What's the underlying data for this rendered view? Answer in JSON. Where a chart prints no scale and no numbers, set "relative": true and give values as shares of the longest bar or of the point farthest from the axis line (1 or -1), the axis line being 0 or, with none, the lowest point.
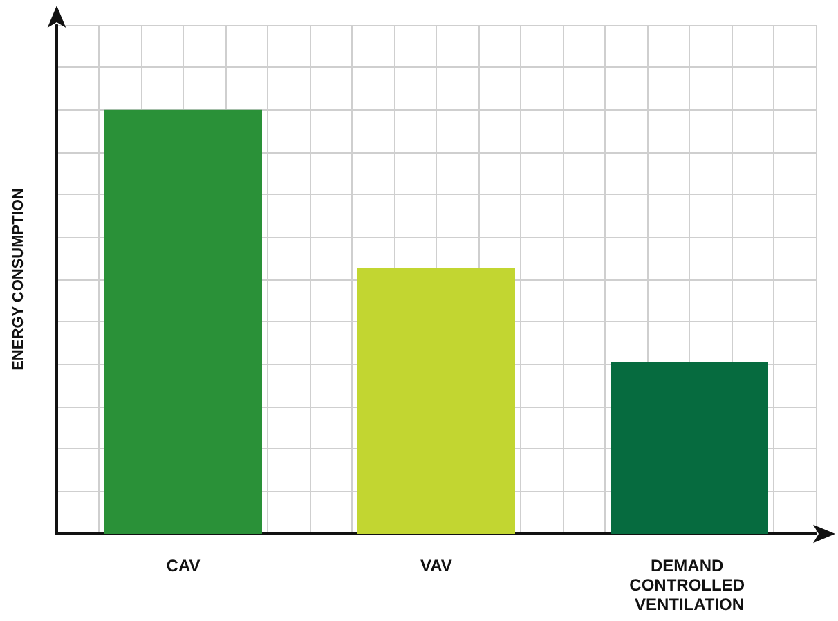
{
  "chart_data": {
    "type": "bar",
    "ylabel": "ENERGY CONSUMPTION",
    "categories": [
      "CAV",
      "VAV",
      "DEMAND CONTROLLED VENTILATION"
    ],
    "values": [
      1,
      0.627,
      0.406
    ],
    "colors": [
      "#2a9138",
      "#c2d631",
      "#066b3f"
    ],
    "relative": true,
    "grid": true
  }
}
